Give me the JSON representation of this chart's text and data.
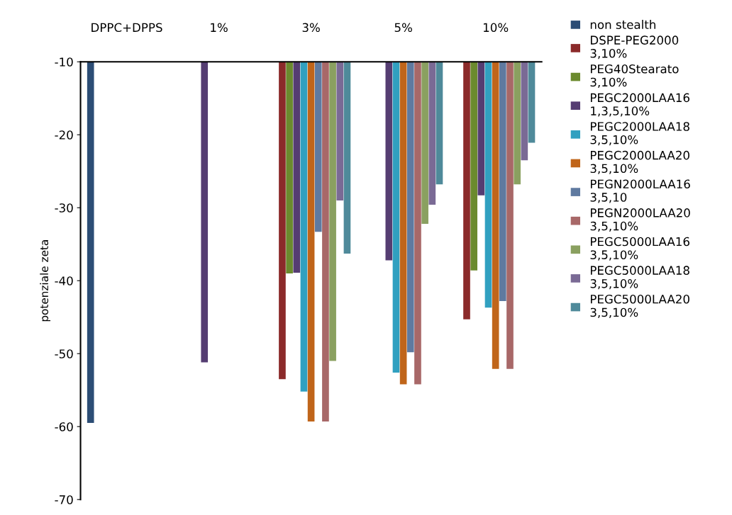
{
  "chart_data": {
    "type": "bar",
    "ylabel": "potenziale zeta",
    "categories": [
      "DPPC+DPPS",
      "1%",
      "3%",
      "5%",
      "10%"
    ],
    "ylim": [
      -70,
      -10
    ],
    "yticks": [
      -70,
      -60,
      -50,
      -40,
      -30,
      -20,
      -10
    ],
    "grid": false,
    "legend": "right",
    "series": [
      {
        "name": "non stealth",
        "color": "#2c4d75",
        "values": [
          -59.5,
          null,
          null,
          null,
          null
        ]
      },
      {
        "name": "DSPE-PEG2000\n3,10%",
        "color": "#8b2a2a",
        "values": [
          null,
          null,
          -53.5,
          null,
          -45.3
        ]
      },
      {
        "name": "PEG40Stearato\n3,10%",
        "color": "#6b8a2e",
        "values": [
          null,
          null,
          -39,
          null,
          -38.6
        ]
      },
      {
        "name": "PEGC2000LAA16\n1,3,5,10%",
        "color": "#553d72",
        "values": [
          null,
          -51.2,
          -38.9,
          -37.2,
          -28.3
        ]
      },
      {
        "name": "PEGC2000LAA18\n3,5,10%",
        "color": "#31a0c0",
        "values": [
          null,
          null,
          -55.2,
          -52.6,
          -43.7
        ]
      },
      {
        "name": "PEGC2000LAA20\n3,5,10%",
        "color": "#c0651a",
        "values": [
          null,
          null,
          -59.3,
          -54.2,
          -52.1
        ]
      },
      {
        "name": "PEGN2000LAA16\n3,5,10",
        "color": "#5f7aa0",
        "values": [
          null,
          null,
          -33.3,
          -49.8,
          -42.8
        ]
      },
      {
        "name": "PEGN2000LAA20\n3,5,10%",
        "color": "#a86868",
        "values": [
          null,
          null,
          -59.3,
          -54.2,
          -52.1
        ]
      },
      {
        "name": "PEGC5000LAA16\n3,5,10%",
        "color": "#8aa060",
        "values": [
          null,
          null,
          -51,
          -32.2,
          -26.8
        ]
      },
      {
        "name": "PEGC5000LAA18\n3,5,10%",
        "color": "#7a6a95",
        "values": [
          null,
          null,
          -29,
          -29.6,
          -23.5
        ]
      },
      {
        "name": "PEGC5000LAA20\n3,5,10%",
        "color": "#4f8a9a",
        "values": [
          null,
          null,
          -36.3,
          -26.8,
          -21.1
        ]
      }
    ]
  }
}
